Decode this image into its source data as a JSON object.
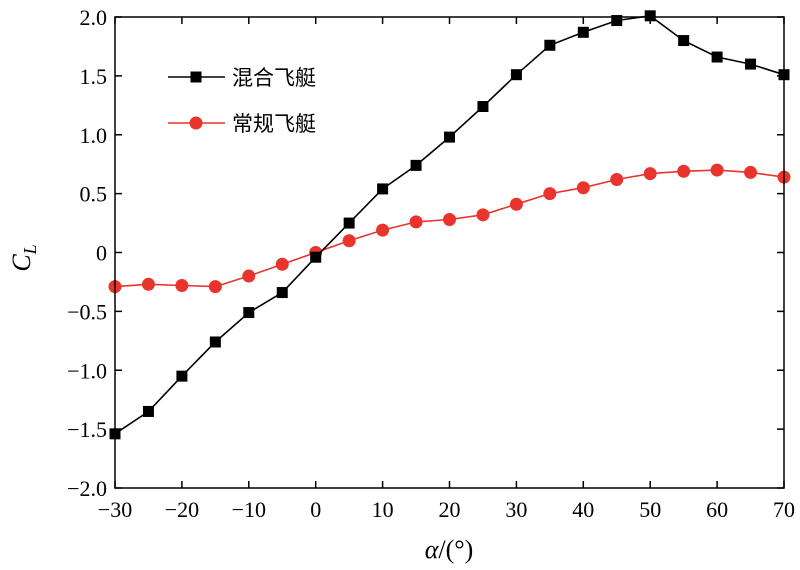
{
  "chart_data": {
    "type": "line",
    "xlabel_var": "α",
    "xlabel_unit": "/(°)",
    "ylabel_main": "C",
    "ylabel_sub": "L",
    "xlim": [
      -30,
      70
    ],
    "ylim": [
      -2.0,
      2.0
    ],
    "xticks": [
      -30,
      -20,
      -10,
      0,
      10,
      20,
      30,
      40,
      50,
      60,
      70
    ],
    "xtick_labels": [
      "−30",
      "−20",
      "−10",
      "0",
      "10",
      "20",
      "30",
      "40",
      "50",
      "60",
      "70"
    ],
    "yticks": [
      2.0,
      1.5,
      1.0,
      0.5,
      0,
      -0.5,
      -1.0,
      -1.5,
      -2.0
    ],
    "ytick_labels": [
      "2.0",
      "1.5",
      "1.0",
      "0.5",
      "0",
      "−0.5",
      "−1.0",
      "−1.5",
      "−2.0"
    ],
    "grid": false,
    "legend_position": "top-left",
    "x": [
      -30,
      -25,
      -20,
      -15,
      -10,
      -5,
      0,
      5,
      10,
      15,
      20,
      25,
      30,
      35,
      40,
      45,
      50,
      55,
      60,
      65,
      70
    ],
    "series": [
      {
        "name": "混合飞艇",
        "color": "#000000",
        "marker": "square",
        "values": [
          -1.54,
          -1.35,
          -1.05,
          -0.76,
          -0.51,
          -0.34,
          -0.04,
          0.25,
          0.54,
          0.74,
          0.98,
          1.24,
          1.51,
          1.76,
          1.87,
          1.97,
          2.01,
          1.8,
          1.66,
          1.6,
          1.51
        ]
      },
      {
        "name": "常规飞艇",
        "color": "#e8342c",
        "marker": "circle",
        "values": [
          -0.29,
          -0.27,
          -0.28,
          -0.29,
          -0.2,
          -0.1,
          0.0,
          0.1,
          0.19,
          0.26,
          0.28,
          0.32,
          0.41,
          0.5,
          0.55,
          0.62,
          0.67,
          0.69,
          0.7,
          0.68,
          0.64
        ]
      }
    ]
  }
}
